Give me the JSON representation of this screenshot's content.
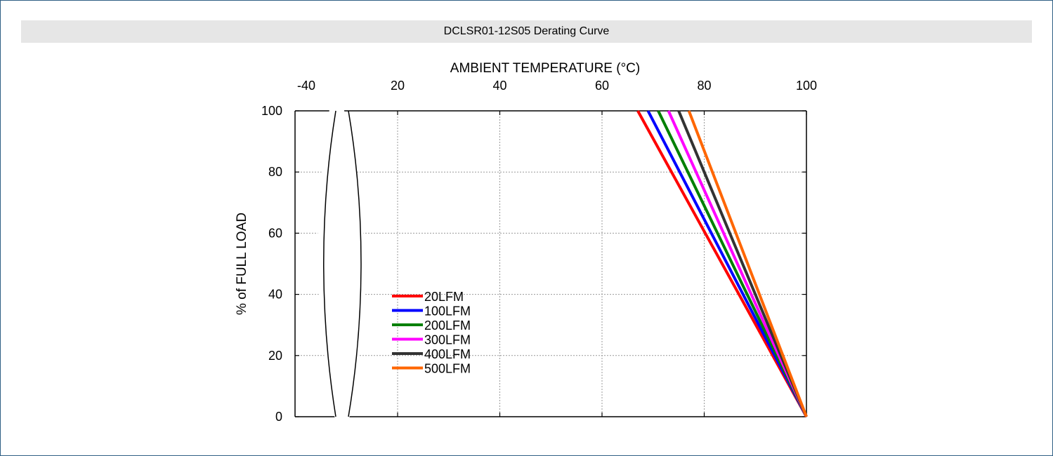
{
  "page": {
    "title": "DCLSR01-12S05 Derating Curve"
  },
  "chart_data": {
    "type": "line",
    "title": "",
    "xlabel": "AMBIENT TEMPERATURE (°C)",
    "ylabel": "% of FULL LOAD",
    "x_ticks": [
      "-40",
      "20",
      "40",
      "60",
      "80",
      "100"
    ],
    "y_ticks": [
      "0",
      "20",
      "40",
      "60",
      "80",
      "100"
    ],
    "xlim": [
      0,
      100
    ],
    "ylim": [
      0,
      100
    ],
    "axis_break": "between -40 and 20 on the x-axis",
    "grid": true,
    "legend_position": "lower-left",
    "series": [
      {
        "name": "20LFM",
        "color": "#ff0000",
        "x": [
          67,
          100
        ],
        "y": [
          100,
          0
        ]
      },
      {
        "name": "100LFM",
        "color": "#0000ff",
        "x": [
          69,
          100
        ],
        "y": [
          100,
          0
        ]
      },
      {
        "name": "200LFM",
        "color": "#008000",
        "x": [
          71,
          100
        ],
        "y": [
          100,
          0
        ]
      },
      {
        "name": "300LFM",
        "color": "#ff00ff",
        "x": [
          73,
          100
        ],
        "y": [
          100,
          0
        ]
      },
      {
        "name": "400LFM",
        "color": "#333333",
        "x": [
          75,
          100
        ],
        "y": [
          100,
          0
        ]
      },
      {
        "name": "500LFM",
        "color": "#ff6600",
        "x": [
          77,
          100
        ],
        "y": [
          100,
          0
        ]
      }
    ]
  }
}
